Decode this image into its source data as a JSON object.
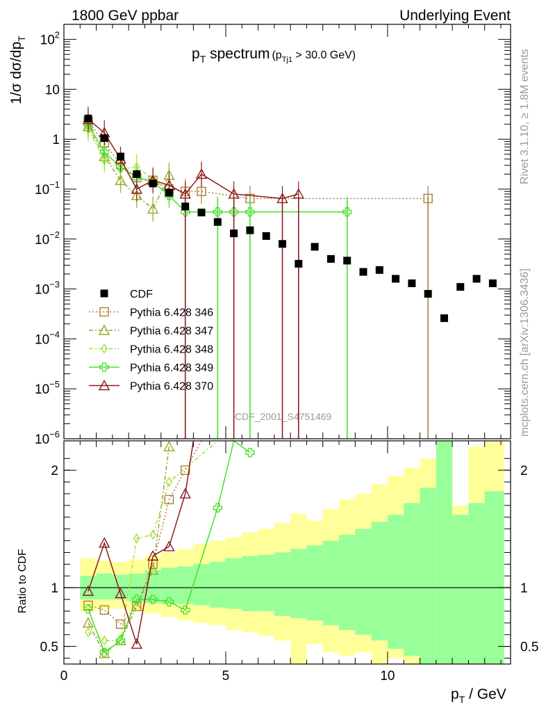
{
  "header": {
    "left": "1800 GeV ppbar",
    "right": "Underlying Event",
    "plot_title_main": "p",
    "plot_title_sub": "T",
    "plot_title_rest": " spectrum",
    "cut_prefix": "(p",
    "cut_sub": "Tj1",
    "cut_rest": " > 30.0 GeV)"
  },
  "side_labels": {
    "rivet": "Rivet 3.1.10, ≥ 1.8M events",
    "mcplots": "mcplots.cern.ch [arXiv:1306.3436]"
  },
  "watermark": "CDF_2001_S4751469",
  "chart_data": {
    "type": "scatter",
    "top_panel": {
      "ylabel": "1/σ dσ/dp",
      "ylabel_sub": "T",
      "yscale": "log",
      "ylim": [
        1e-06,
        200
      ],
      "xlim": [
        0,
        13.8
      ],
      "yticks": [
        {
          "v": 100,
          "m": "10",
          "e": "2"
        },
        {
          "v": 10,
          "m": "10",
          "e": ""
        },
        {
          "v": 1,
          "m": "1",
          "e": ""
        },
        {
          "v": 0.1,
          "m": "10",
          "e": "−1"
        },
        {
          "v": 0.01,
          "m": "10",
          "e": "−2"
        },
        {
          "v": 0.001,
          "m": "10",
          "e": "−3"
        },
        {
          "v": 0.0001,
          "m": "10",
          "e": "−4"
        },
        {
          "v": 1e-05,
          "m": "10",
          "e": "−5"
        },
        {
          "v": 1e-06,
          "m": "10",
          "e": "−6"
        }
      ]
    },
    "ratio_panel": {
      "ylabel": "Ratio to CDF",
      "ylim": [
        0.35,
        2.25
      ],
      "yticks": [
        0.5,
        1,
        2
      ],
      "ytick_labels": [
        "0.5",
        "1",
        "2"
      ]
    },
    "xlabel": "p",
    "xlabel_sub": "T",
    "xlabel_rest": " / GeV",
    "xticks": [
      0,
      5,
      10
    ],
    "xtick_labels": [
      "0",
      "5",
      "10"
    ],
    "legend": {
      "placement": "lower-left of top panel",
      "entries": [
        "CDF",
        "Pythia 6.428 346",
        "Pythia 6.428 347",
        "Pythia 6.428 348",
        "Pythia 6.428 349",
        "Pythia 6.428 370"
      ]
    },
    "data": {
      "name": "CDF",
      "x": [
        0.75,
        1.25,
        1.75,
        2.25,
        2.75,
        3.25,
        3.75,
        4.25,
        4.75,
        5.25,
        5.75,
        6.25,
        6.75,
        7.25,
        7.75,
        8.25,
        8.75,
        9.25,
        9.75,
        10.25,
        10.75,
        11.25,
        11.75,
        12.25,
        12.75,
        13.25
      ],
      "y": [
        2.6,
        1.05,
        0.45,
        0.2,
        0.13,
        0.085,
        0.045,
        0.034,
        0.022,
        0.013,
        0.015,
        0.0115,
        0.008,
        0.0032,
        0.007,
        0.004,
        0.0037,
        0.0022,
        0.0024,
        0.0016,
        0.0013,
        0.0008,
        0.00026,
        0.0011,
        0.0016,
        0.0013
      ]
    },
    "series": [
      {
        "name": "Pythia 6.428 346",
        "color": "#b07d3a",
        "marker": "square-open",
        "dash": "2,3",
        "x": [
          0.75,
          1.25,
          1.75,
          2.25,
          2.75,
          3.25,
          3.75,
          4.25,
          5.75,
          11.25
        ],
        "y": [
          2.3,
          0.85,
          0.31,
          0.17,
          0.15,
          0.1,
          0.09,
          0.09,
          0.065,
          0.065
        ],
        "ratio_x": [
          0.75,
          1.25,
          1.75,
          2.25,
          2.75,
          3.25,
          3.75,
          4.25
        ],
        "ratio_y": [
          0.85,
          0.81,
          0.69,
          0.84,
          1.2,
          1.75,
          2.0,
          2.65
        ]
      },
      {
        "name": "Pythia 6.428 347",
        "color": "#9aa51f",
        "marker": "triangle-open",
        "dash": "6,3,2,3",
        "x": [
          0.75,
          1.25,
          1.75,
          2.25,
          2.75,
          3.25
        ],
        "y": [
          1.8,
          0.45,
          0.15,
          0.075,
          0.04,
          0.19
        ],
        "ratio_x": [
          0.75,
          1.25,
          1.75,
          2.25,
          2.75,
          3.25
        ],
        "ratio_y": [
          0.7,
          0.44,
          0.55,
          0.84,
          1.15,
          2.2
        ]
      },
      {
        "name": "Pythia 6.428 348",
        "color": "#a8e03a",
        "marker": "diamond-open",
        "dash": "6,3,2,3",
        "x": [
          0.75,
          1.25,
          1.75,
          2.25,
          2.75,
          3.25
        ],
        "y": [
          1.6,
          0.38,
          0.25,
          0.28,
          0.16,
          0.09
        ],
        "ratio_x": [
          0.75,
          1.25,
          1.75,
          2.25,
          2.75,
          3.25,
          4.75
        ],
        "ratio_y": [
          0.62,
          0.55,
          0.55,
          1.42,
          1.45,
          1.9,
          2.25
        ]
      },
      {
        "name": "Pythia 6.428 349",
        "color": "#44e02a",
        "marker": "cross-open",
        "dash": "",
        "x": [
          0.75,
          1.25,
          1.75,
          2.25,
          2.75,
          3.25,
          3.75,
          4.75,
          5.25,
          5.75,
          8.75
        ],
        "y": [
          2.0,
          0.55,
          0.28,
          0.17,
          0.14,
          0.075,
          0.035,
          0.035,
          0.035,
          0.035,
          0.035
        ],
        "ratio_x": [
          0.75,
          1.25,
          1.75,
          2.25,
          2.75,
          3.25,
          3.75,
          4.75,
          5.25,
          5.75
        ],
        "ratio_y": [
          0.82,
          0.45,
          0.55,
          0.9,
          0.9,
          0.88,
          0.81,
          1.68,
          2.35,
          2.15
        ]
      },
      {
        "name": "Pythia 6.428 370",
        "color": "#8b1a1a",
        "marker": "triangle-open",
        "dash": "",
        "x": [
          0.75,
          1.25,
          1.75,
          2.25,
          2.75,
          3.25,
          3.75,
          4.25,
          5.25,
          6.75,
          7.25
        ],
        "y": [
          2.5,
          1.35,
          0.4,
          0.1,
          0.15,
          0.12,
          0.08,
          0.2,
          0.08,
          0.065,
          0.08
        ],
        "ratio_x": [
          0.75,
          1.25,
          1.75,
          2.25,
          2.75,
          3.25,
          3.75,
          4.0
        ],
        "ratio_y": [
          0.97,
          1.38,
          0.95,
          0.52,
          1.27,
          1.35,
          1.8,
          2.4
        ]
      }
    ],
    "uncertainty_bands": {
      "bins": [
        [
          0.5,
          1.0
        ],
        [
          1.0,
          1.5
        ],
        [
          1.5,
          2.0
        ],
        [
          2.0,
          2.5
        ],
        [
          2.5,
          3.0
        ],
        [
          3.0,
          3.5
        ],
        [
          3.5,
          4.0
        ],
        [
          4.0,
          4.5
        ],
        [
          4.5,
          5.0
        ],
        [
          5.0,
          5.5
        ],
        [
          5.5,
          6.0
        ],
        [
          6.0,
          6.5
        ],
        [
          6.5,
          7.0
        ],
        [
          7.0,
          7.5
        ],
        [
          7.5,
          8.0
        ],
        [
          8.0,
          8.5
        ],
        [
          8.5,
          9.0
        ],
        [
          9.0,
          9.5
        ],
        [
          9.5,
          10.0
        ],
        [
          10.0,
          10.5
        ],
        [
          10.5,
          11.0
        ],
        [
          11.0,
          11.5
        ],
        [
          11.5,
          12.0
        ],
        [
          12.0,
          12.5
        ],
        [
          12.5,
          13.0
        ],
        [
          13.0,
          13.6
        ]
      ],
      "inner": [
        [
          0.9,
          1.1
        ],
        [
          0.9,
          1.12
        ],
        [
          0.9,
          1.11
        ],
        [
          0.88,
          1.12
        ],
        [
          0.87,
          1.15
        ],
        [
          0.86,
          1.17
        ],
        [
          0.86,
          1.18
        ],
        [
          0.85,
          1.2
        ],
        [
          0.83,
          1.22
        ],
        [
          0.82,
          1.25
        ],
        [
          0.8,
          1.27
        ],
        [
          0.8,
          1.28
        ],
        [
          0.76,
          1.3
        ],
        [
          0.74,
          1.33
        ],
        [
          0.72,
          1.36
        ],
        [
          0.68,
          1.4
        ],
        [
          0.64,
          1.45
        ],
        [
          0.6,
          1.5
        ],
        [
          0.55,
          1.56
        ],
        [
          0.48,
          1.62
        ],
        [
          0.42,
          1.72
        ],
        [
          0.35,
          1.85
        ],
        [
          0.35,
          2.25
        ],
        [
          0.35,
          1.62
        ],
        [
          0.35,
          1.72
        ],
        [
          0.35,
          1.82
        ]
      ],
      "outer": [
        [
          0.8,
          1.25
        ],
        [
          0.82,
          1.23
        ],
        [
          0.82,
          1.22
        ],
        [
          0.8,
          1.24
        ],
        [
          0.78,
          1.27
        ],
        [
          0.75,
          1.3
        ],
        [
          0.72,
          1.33
        ],
        [
          0.7,
          1.37
        ],
        [
          0.68,
          1.4
        ],
        [
          0.64,
          1.43
        ],
        [
          0.62,
          1.47
        ],
        [
          0.59,
          1.5
        ],
        [
          0.55,
          1.55
        ],
        [
          0.35,
          1.63
        ],
        [
          0.52,
          1.57
        ],
        [
          0.45,
          1.67
        ],
        [
          0.42,
          1.75
        ],
        [
          0.45,
          1.8
        ],
        [
          0.35,
          1.88
        ],
        [
          0.4,
          1.95
        ],
        [
          0.35,
          2.02
        ],
        [
          0.35,
          2.1
        ],
        [
          0.35,
          2.25
        ],
        [
          0.35,
          1.7
        ],
        [
          0.35,
          2.2
        ],
        [
          0.35,
          2.25
        ]
      ]
    }
  }
}
